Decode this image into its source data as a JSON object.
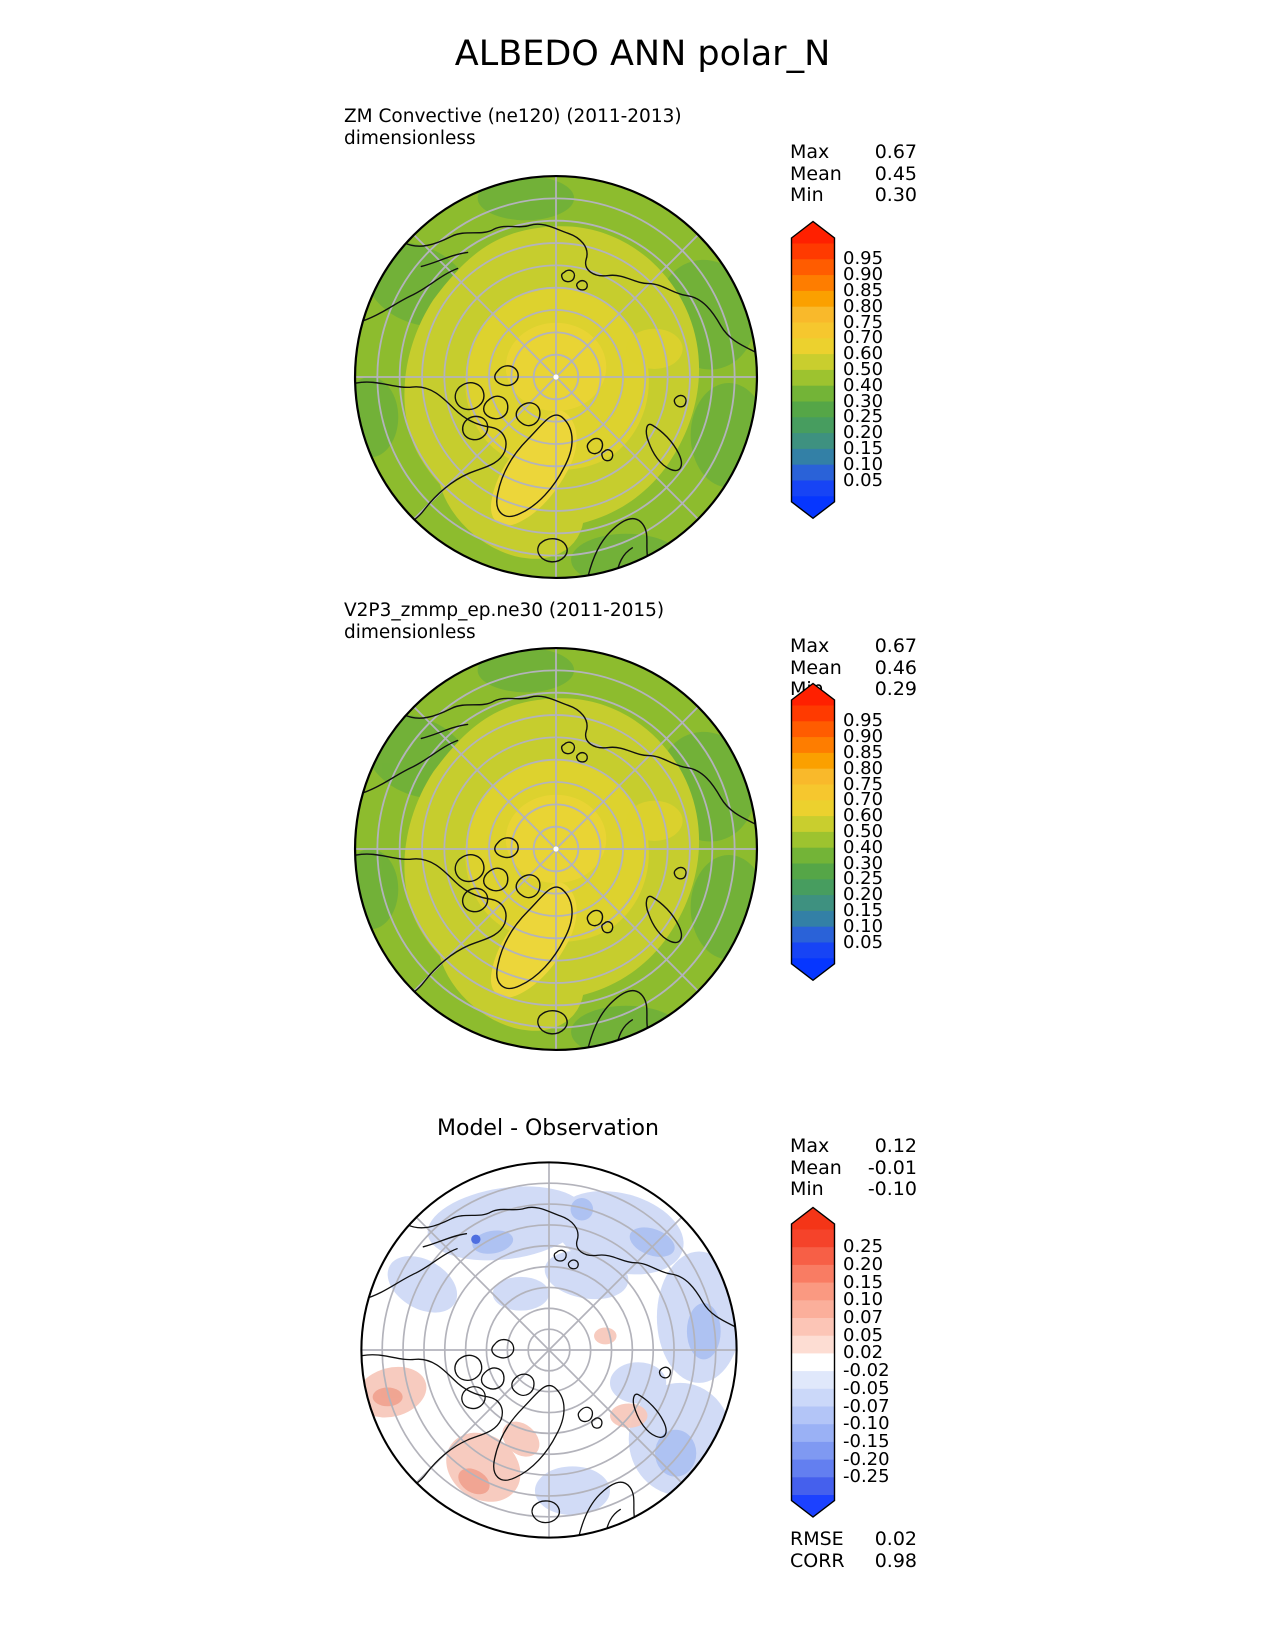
{
  "title": "ALBEDO ANN polar_N",
  "panels": [
    {
      "title": "ZM Convective (ne120) (2011-2013)",
      "subtitle": "dimensionless",
      "stats": [
        {
          "label": "Max",
          "value": "0.67"
        },
        {
          "label": "Mean",
          "value": "0.45"
        },
        {
          "label": "Min",
          "value": "0.30"
        }
      ],
      "colorbar": {
        "cap_top_color": "#ff2000",
        "cap_bottom_color": "#0636ff",
        "segment_colors": [
          "#ff3a00",
          "#ff5c00",
          "#fe7d00",
          "#fba000",
          "#f9b92b",
          "#f6c72e",
          "#ecd12e",
          "#c9ce2e",
          "#9dc32f",
          "#73b437",
          "#55a647",
          "#479d5f",
          "#3e9180",
          "#3380a6",
          "#2a62d8",
          "#1744f5"
        ],
        "tick_labels": [
          "0.95",
          "0.90",
          "0.85",
          "0.80",
          "0.75",
          "0.70",
          "0.60",
          "0.50",
          "0.40",
          "0.30",
          "0.25",
          "0.20",
          "0.15",
          "0.10",
          "0.05"
        ]
      }
    },
    {
      "title": "V2P3_zmmp_ep.ne30 (2011-2015)",
      "subtitle": "dimensionless",
      "stats": [
        {
          "label": "Max",
          "value": "0.67"
        },
        {
          "label": "Mean",
          "value": "0.46"
        },
        {
          "label": "Min",
          "value": "0.29"
        }
      ],
      "colorbar": {
        "cap_top_color": "#ff2000",
        "cap_bottom_color": "#0636ff",
        "segment_colors": [
          "#ff3a00",
          "#ff5c00",
          "#fe7d00",
          "#fba000",
          "#f9b92b",
          "#f6c72e",
          "#ecd12e",
          "#c9ce2e",
          "#9dc32f",
          "#73b437",
          "#55a647",
          "#479d5f",
          "#3e9180",
          "#3380a6",
          "#2a62d8",
          "#1744f5"
        ],
        "tick_labels": [
          "0.95",
          "0.90",
          "0.85",
          "0.80",
          "0.75",
          "0.70",
          "0.60",
          "0.50",
          "0.40",
          "0.30",
          "0.25",
          "0.20",
          "0.15",
          "0.10",
          "0.05"
        ]
      }
    },
    {
      "title": "Model - Observation",
      "stats": [
        {
          "label": "Max",
          "value": "0.12"
        },
        {
          "label": "Mean",
          "value": "-0.01"
        },
        {
          "label": "Min",
          "value": "-0.10"
        }
      ],
      "colorbar": {
        "cap_top_color": "#f43517",
        "cap_bottom_color": "#1c41ff",
        "segment_colors": [
          "#f5432a",
          "#f75f46",
          "#f97c63",
          "#fa9981",
          "#fbaf9b",
          "#fcc5b6",
          "#fdddd3",
          "#ffffff",
          "#e0e8fb",
          "#cbd8f9",
          "#b3c5f7",
          "#9ab1f5",
          "#7f99f2",
          "#637ff0",
          "#4560ed"
        ],
        "tick_labels": [
          "0.25",
          "0.20",
          "0.15",
          "0.10",
          "0.07",
          "0.05",
          "0.02",
          "-0.02",
          "-0.05",
          "-0.07",
          "-0.10",
          "-0.15",
          "-0.20",
          "-0.25"
        ]
      },
      "metrics": [
        {
          "label": "RMSE",
          "value": "0.02"
        },
        {
          "label": "CORR",
          "value": "0.98"
        }
      ]
    }
  ],
  "chart_data": [
    {
      "type": "heatmap",
      "subtype": "filled-contour-polar-map",
      "title": "ZM Convective (ne120) (2011-2013)",
      "variable": "ALBEDO",
      "season": "ANN",
      "region": "polar_N",
      "units": "dimensionless",
      "contour_levels": [
        0.05,
        0.1,
        0.15,
        0.2,
        0.25,
        0.3,
        0.4,
        0.5,
        0.6,
        0.7,
        0.75,
        0.8,
        0.85,
        0.9,
        0.95
      ],
      "stats": {
        "max": 0.67,
        "mean": 0.45,
        "min": 0.3
      },
      "legend_position": "right"
    },
    {
      "type": "heatmap",
      "subtype": "filled-contour-polar-map",
      "title": "V2P3_zmmp_ep.ne30 (2011-2015)",
      "variable": "ALBEDO",
      "season": "ANN",
      "region": "polar_N",
      "units": "dimensionless",
      "contour_levels": [
        0.05,
        0.1,
        0.15,
        0.2,
        0.25,
        0.3,
        0.4,
        0.5,
        0.6,
        0.7,
        0.75,
        0.8,
        0.85,
        0.9,
        0.95
      ],
      "stats": {
        "max": 0.67,
        "mean": 0.46,
        "min": 0.29
      },
      "legend_position": "right"
    },
    {
      "type": "heatmap",
      "subtype": "filled-contour-polar-map-difference",
      "title": "Model - Observation",
      "variable": "ALBEDO",
      "season": "ANN",
      "region": "polar_N",
      "units": "dimensionless",
      "contour_levels": [
        -0.25,
        -0.2,
        -0.15,
        -0.1,
        -0.07,
        -0.05,
        -0.02,
        0.02,
        0.05,
        0.07,
        0.1,
        0.15,
        0.2,
        0.25
      ],
      "stats": {
        "max": 0.12,
        "mean": -0.01,
        "min": -0.1
      },
      "rmse": 0.02,
      "corr": 0.98,
      "legend_position": "right"
    }
  ]
}
